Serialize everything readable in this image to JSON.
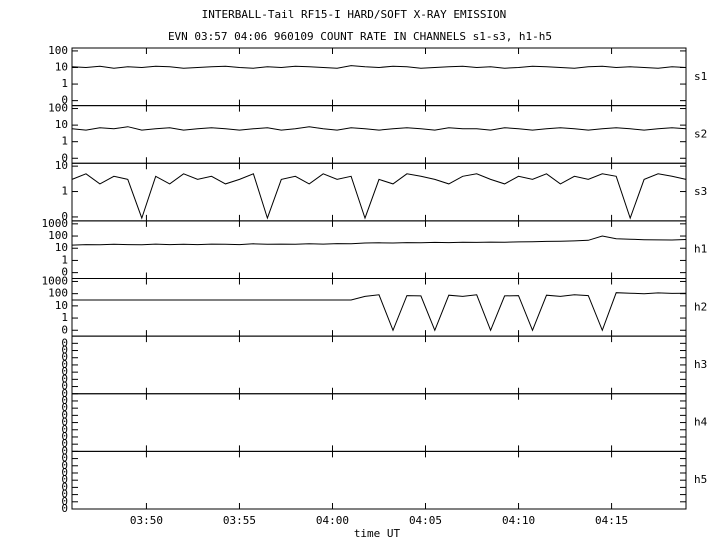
{
  "chart_data": [
    {
      "type": "line",
      "title": "INTERBALL-Tail RF15-I HARD/SOFT X-RAY EMISSION",
      "subtitle": "EVN 03:57 04:06 960109  COUNT RATE IN CHANNELS s1-s3, h1-h5",
      "name": "s1",
      "log_y": true,
      "color": "#000000",
      "ylim": [
        0.05,
        150
      ],
      "yticks": [
        100,
        10,
        1,
        {
          "value": 0.1,
          "label": "0"
        }
      ],
      "xlim": [
        46,
        79
      ],
      "x": [
        46,
        46.75,
        47.5,
        48.25,
        49,
        49.75,
        50.5,
        51.25,
        52,
        52.75,
        53.5,
        54.25,
        55,
        55.75,
        56.5,
        57.25,
        58,
        58.75,
        59.5,
        60.25,
        61,
        61.75,
        62.5,
        63.25,
        64,
        64.75,
        65.5,
        66.25,
        67,
        67.75,
        68.5,
        69.25,
        70,
        70.75,
        71.5,
        72.25,
        73,
        73.75,
        74.5,
        75.25,
        76,
        76.75,
        77.5,
        78.25,
        79
      ],
      "values": [
        11,
        10,
        12,
        9,
        11,
        10,
        12,
        11,
        9,
        10,
        11,
        12,
        10,
        9,
        11,
        10,
        12,
        11,
        10,
        9,
        13,
        11,
        10,
        12,
        11,
        9,
        10,
        11,
        12,
        10,
        11,
        9,
        10,
        12,
        11,
        10,
        9,
        11,
        12,
        10,
        11,
        10,
        9,
        11,
        10
      ]
    },
    {
      "type": "line",
      "name": "s2",
      "log_y": true,
      "color": "#000000",
      "ylim": [
        0.05,
        150
      ],
      "yticks": [
        100,
        10,
        1,
        {
          "value": 0.1,
          "label": "0"
        }
      ],
      "xlim": [
        46,
        79
      ],
      "x": [
        46,
        46.75,
        47.5,
        48.25,
        49,
        49.75,
        50.5,
        51.25,
        52,
        52.75,
        53.5,
        54.25,
        55,
        55.75,
        56.5,
        57.25,
        58,
        58.75,
        59.5,
        60.25,
        61,
        61.75,
        62.5,
        63.25,
        64,
        64.75,
        65.5,
        66.25,
        67,
        67.75,
        68.5,
        69.25,
        70,
        70.75,
        71.5,
        72.25,
        73,
        73.75,
        74.5,
        75.25,
        76,
        76.75,
        77.5,
        78.25,
        79
      ],
      "values": [
        6,
        5,
        7,
        6,
        8,
        5,
        6,
        7,
        5,
        6,
        7,
        6,
        5,
        6,
        7,
        5,
        6,
        8,
        6,
        5,
        7,
        6,
        5,
        6,
        7,
        6,
        5,
        7,
        6,
        6,
        5,
        7,
        6,
        5,
        6,
        7,
        6,
        5,
        6,
        7,
        6,
        5,
        6,
        7,
        6
      ]
    },
    {
      "type": "line",
      "name": "s3",
      "log_y": true,
      "color": "#000000",
      "ylim": [
        0.07,
        13
      ],
      "yticks": [
        10,
        1,
        {
          "value": 0.1,
          "label": "0"
        }
      ],
      "xlim": [
        46,
        79
      ],
      "x": [
        46,
        46.75,
        47.5,
        48.25,
        49,
        49.75,
        50.5,
        51.25,
        52,
        52.75,
        53.5,
        54.25,
        55,
        55.75,
        56.5,
        57.25,
        58,
        58.75,
        59.5,
        60.25,
        61,
        61.75,
        62.5,
        63.25,
        64,
        64.75,
        65.5,
        66.25,
        67,
        67.75,
        68.5,
        69.25,
        70,
        70.75,
        71.5,
        72.25,
        73,
        73.75,
        74.5,
        75.25,
        76,
        76.75,
        77.5,
        78.25,
        79
      ],
      "values": [
        3,
        5,
        2,
        4,
        3,
        0.09,
        4,
        2,
        5,
        3,
        4,
        2,
        3,
        5,
        0.09,
        3,
        4,
        2,
        5,
        3,
        4,
        0.09,
        3,
        2,
        5,
        4,
        3,
        2,
        4,
        5,
        3,
        2,
        4,
        3,
        5,
        2,
        4,
        3,
        5,
        4,
        0.09,
        3,
        5,
        4,
        3
      ]
    },
    {
      "type": "line",
      "name": "h1",
      "log_y": true,
      "color": "#000000",
      "ylim": [
        0.033,
        1750
      ],
      "yticks": [
        1000,
        100,
        10,
        1,
        {
          "value": 0.1,
          "label": "0"
        }
      ],
      "xlim": [
        46,
        79
      ],
      "x": [
        46,
        46.75,
        47.5,
        48.25,
        49,
        49.75,
        50.5,
        51.25,
        52,
        52.75,
        53.5,
        54.25,
        55,
        55.75,
        56.5,
        57.25,
        58,
        58.75,
        59.5,
        60.25,
        61,
        61.75,
        62.5,
        63.25,
        64,
        64.75,
        65.5,
        66.25,
        67,
        67.75,
        68.5,
        69.25,
        70,
        70.75,
        71.5,
        72.25,
        73,
        73.75,
        74.5,
        75.25,
        76,
        76.75,
        77.5,
        78.25,
        79
      ],
      "values": [
        18,
        20,
        19,
        21,
        20,
        19,
        22,
        20,
        21,
        20,
        22,
        21,
        20,
        23,
        21,
        22,
        21,
        23,
        22,
        24,
        23,
        27,
        28,
        27,
        29,
        28,
        30,
        29,
        31,
        30,
        32,
        31,
        33,
        34,
        36,
        38,
        40,
        45,
        100,
        60,
        55,
        50,
        48,
        47,
        52
      ]
    },
    {
      "type": "line",
      "name": "h2",
      "log_y": true,
      "color": "#000000",
      "ylim": [
        0.033,
        1750
      ],
      "yticks": [
        1000,
        100,
        10,
        1,
        {
          "value": 0.1,
          "label": "0"
        }
      ],
      "xlim": [
        46,
        79
      ],
      "x": [
        46,
        46.75,
        47.5,
        48.25,
        49,
        49.75,
        50.5,
        51.25,
        52,
        52.75,
        53.5,
        54.25,
        55,
        55.75,
        56.5,
        57.25,
        58,
        58.75,
        59.5,
        60.25,
        61,
        61.75,
        62.5,
        63.25,
        64,
        64.75,
        65.5,
        66.25,
        67,
        67.75,
        68.5,
        69.25,
        70,
        70.75,
        71.5,
        72.25,
        73,
        73.75,
        74.5,
        75.25,
        76,
        76.75,
        77.5,
        78.25,
        79
      ],
      "values": [
        30,
        30,
        30,
        30,
        30,
        30,
        30,
        30,
        30,
        30,
        30,
        30,
        30,
        30,
        30,
        30,
        30,
        30,
        30,
        30,
        30,
        60,
        80,
        0.1,
        70,
        65,
        0.1,
        75,
        60,
        80,
        0.1,
        65,
        70,
        0.1,
        75,
        60,
        80,
        70,
        0.1,
        120,
        110,
        100,
        115,
        105,
        110
      ]
    },
    {
      "type": "line",
      "name": "h3",
      "log_y": false,
      "ylim": [
        0,
        1
      ],
      "xlim": [
        46,
        79
      ],
      "yticks": [
        {
          "value": 0,
          "label": "0"
        },
        {
          "value": 0.125,
          "label": "0"
        },
        {
          "value": 0.25,
          "label": "0"
        },
        {
          "value": 0.375,
          "label": "0"
        },
        {
          "value": 0.5,
          "label": "0"
        },
        {
          "value": 0.625,
          "label": "0"
        },
        {
          "value": 0.75,
          "label": "0"
        },
        {
          "value": 0.875,
          "label": "0"
        }
      ]
    },
    {
      "type": "line",
      "name": "h4",
      "log_y": false,
      "ylim": [
        0,
        1
      ],
      "xlim": [
        46,
        79
      ],
      "yticks": [
        {
          "value": 0,
          "label": "0"
        },
        {
          "value": 0.125,
          "label": "0"
        },
        {
          "value": 0.25,
          "label": "0"
        },
        {
          "value": 0.375,
          "label": "0"
        },
        {
          "value": 0.5,
          "label": "0"
        },
        {
          "value": 0.625,
          "label": "0"
        },
        {
          "value": 0.75,
          "label": "0"
        },
        {
          "value": 0.875,
          "label": "0"
        }
      ]
    },
    {
      "type": "line",
      "name": "h5",
      "log_y": false,
      "ylim": [
        0,
        1
      ],
      "xlim": [
        46,
        79
      ],
      "xlabel": "time UT",
      "yticks": [
        {
          "value": 0,
          "label": "0"
        },
        {
          "value": 0.125,
          "label": "0"
        },
        {
          "value": 0.25,
          "label": "0"
        },
        {
          "value": 0.375,
          "label": "0"
        },
        {
          "value": 0.5,
          "label": "0"
        },
        {
          "value": 0.625,
          "label": "0"
        },
        {
          "value": 0.75,
          "label": "0"
        },
        {
          "value": 0.875,
          "label": "0"
        }
      ],
      "xticks": [
        {
          "value": 50,
          "label": "03:50"
        },
        {
          "value": 55,
          "label": "03:55"
        },
        {
          "value": 60,
          "label": "04:00"
        },
        {
          "value": 65,
          "label": "04:05"
        },
        {
          "value": 70,
          "label": "04:10"
        },
        {
          "value": 75,
          "label": "04:15"
        }
      ]
    }
  ]
}
